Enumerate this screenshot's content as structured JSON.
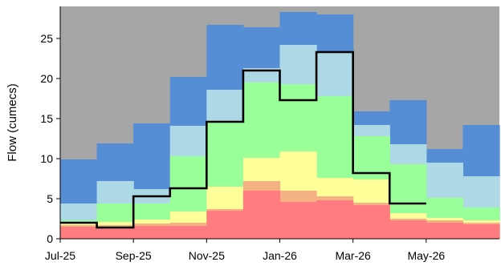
{
  "chart_data": {
    "type": "area",
    "step": true,
    "ylabel": "Flow (cumecs)",
    "ylim": [
      0,
      29
    ],
    "yticks": [
      0,
      5,
      10,
      15,
      20,
      25
    ],
    "xtick_labels": [
      "Jul-25",
      "Sep-25",
      "Nov-25",
      "Jan-26",
      "Mar-26",
      "May-26"
    ],
    "months": [
      "Jul-25",
      "Aug-25",
      "Sep-25",
      "Oct-25",
      "Nov-25",
      "Dec-25",
      "Jan-26",
      "Feb-26",
      "Mar-26",
      "Apr-26",
      "May-26",
      "Jun-26"
    ],
    "background_color": "#a6a6a6",
    "bands": [
      {
        "color": "#ff7c80",
        "values": [
          1.5,
          1.5,
          1.6,
          1.6,
          3.5,
          6.0,
          4.6,
          4.8,
          4.2,
          2.3,
          2.0,
          1.8
        ]
      },
      {
        "color": "#f4b183",
        "values": [
          1.7,
          1.7,
          1.9,
          2.0,
          3.7,
          7.2,
          6.0,
          5.3,
          4.5,
          2.5,
          2.3,
          2.0
        ]
      },
      {
        "color": "#ffff99",
        "values": [
          1.9,
          2.1,
          2.4,
          3.4,
          6.5,
          10.1,
          10.9,
          7.6,
          7.4,
          3.2,
          2.6,
          2.3
        ]
      },
      {
        "color": "#99ff99",
        "values": [
          2.3,
          4.4,
          4.4,
          10.3,
          14.7,
          19.5,
          19.3,
          17.8,
          12.8,
          9.3,
          5.1,
          3.9
        ]
      },
      {
        "color": "#add8e6",
        "values": [
          4.4,
          7.2,
          6.2,
          14.1,
          18.6,
          21.3,
          24.2,
          23.3,
          14.2,
          11.8,
          9.5,
          7.8
        ]
      },
      {
        "color": "#558ed5",
        "values": [
          9.9,
          11.9,
          14.4,
          20.2,
          26.7,
          26.4,
          28.3,
          28.0,
          15.9,
          17.3,
          11.2,
          14.2
        ]
      }
    ],
    "line": {
      "color": "#000000",
      "values": [
        2.0,
        1.4,
        5.3,
        6.3,
        14.6,
        21.0,
        17.3,
        23.3,
        8.2,
        4.4,
        null,
        null
      ],
      "end_month": "May-26"
    }
  }
}
